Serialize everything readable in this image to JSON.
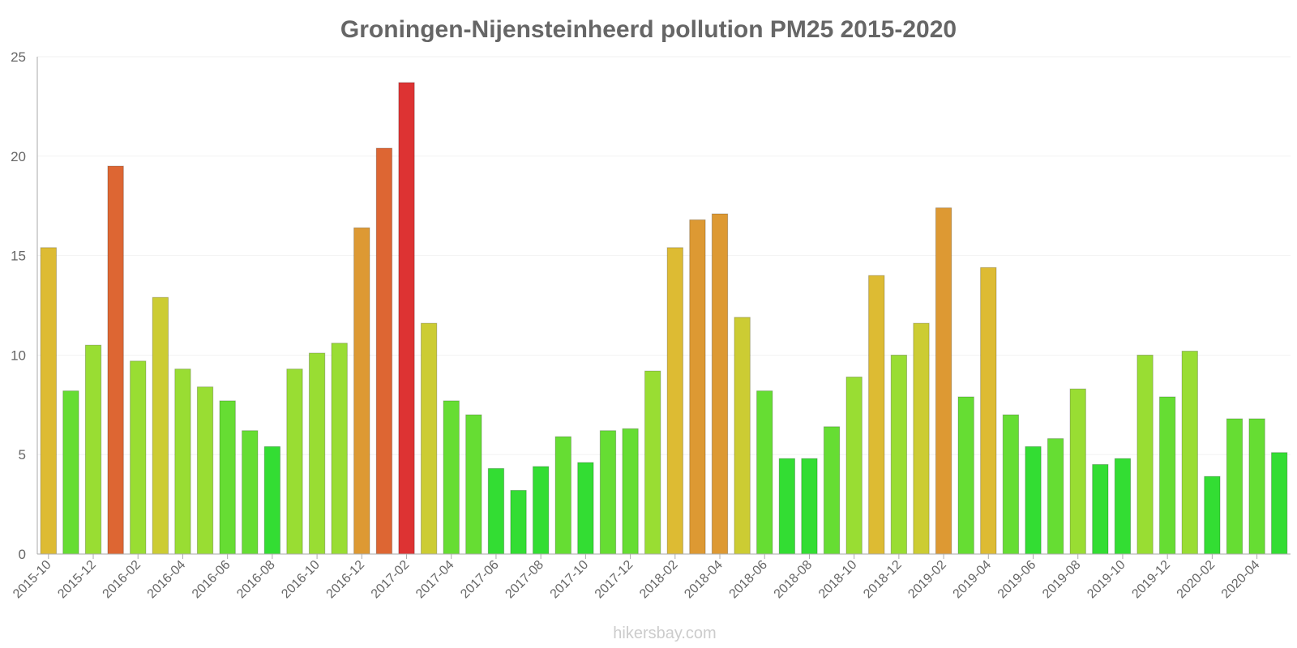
{
  "chart_data": {
    "type": "bar",
    "title": "Groningen-Nijensteinheerd pollution PM25 2015-2020",
    "xlabel": "",
    "ylabel": "",
    "ylim": [
      0,
      25
    ],
    "yticks": [
      0,
      5,
      10,
      15,
      20,
      25
    ],
    "categories": [
      "2015-10",
      "2015-11",
      "2015-12",
      "2016-01",
      "2016-02",
      "2016-03",
      "2016-04",
      "2016-05",
      "2016-06",
      "2016-07",
      "2016-08",
      "2016-09",
      "2016-10",
      "2016-11",
      "2016-12",
      "2017-01",
      "2017-02",
      "2017-03",
      "2017-04",
      "2017-05",
      "2017-06",
      "2017-07",
      "2017-08",
      "2017-09",
      "2017-10",
      "2017-11",
      "2017-12",
      "2018-01",
      "2018-02",
      "2018-03",
      "2018-04",
      "2018-05",
      "2018-06",
      "2018-07",
      "2018-08",
      "2018-09",
      "2018-10",
      "2018-11",
      "2018-12",
      "2019-01",
      "2019-02",
      "2019-03",
      "2019-04",
      "2019-05",
      "2019-06",
      "2019-07",
      "2019-08",
      "2019-09",
      "2019-10",
      "2019-11",
      "2019-12",
      "2020-01",
      "2020-02",
      "2020-03",
      "2020-04",
      "2020-05"
    ],
    "values": [
      15.4,
      8.2,
      10.5,
      19.5,
      9.7,
      12.9,
      9.3,
      8.4,
      7.7,
      6.2,
      5.4,
      9.3,
      10.1,
      10.6,
      16.4,
      20.4,
      23.7,
      11.6,
      7.7,
      7.0,
      4.3,
      3.2,
      4.4,
      5.9,
      4.6,
      6.2,
      6.3,
      9.2,
      15.4,
      16.8,
      17.1,
      11.9,
      8.2,
      4.8,
      4.8,
      6.4,
      8.9,
      14.0,
      10.0,
      11.6,
      17.4,
      7.9,
      14.4,
      7.0,
      5.4,
      5.8,
      8.3,
      4.5,
      4.8,
      10.0,
      7.9,
      10.2,
      3.9,
      6.8,
      6.8,
      5.1
    ],
    "shown_tick_labels": [
      "2015-10",
      "2015-12",
      "2016-02",
      "2016-04",
      "2016-06",
      "2016-08",
      "2016-10",
      "2016-12",
      "2017-02",
      "2017-04",
      "2017-06",
      "2017-08",
      "2017-10",
      "2017-12",
      "2018-02",
      "2018-04",
      "2018-06",
      "2018-08",
      "2018-10",
      "2018-12",
      "2019-02",
      "2019-04",
      "2019-06",
      "2019-08",
      "2019-10",
      "2019-12",
      "2020-02",
      "2020-04"
    ],
    "color_scale": [
      "#33dd33",
      "#66dd33",
      "#99dd33",
      "#cccc33",
      "#ddbb33",
      "#dd9933",
      "#dd6633",
      "#dd3333"
    ],
    "grid": true,
    "legend": "none"
  },
  "credit": "hikersbay.com"
}
